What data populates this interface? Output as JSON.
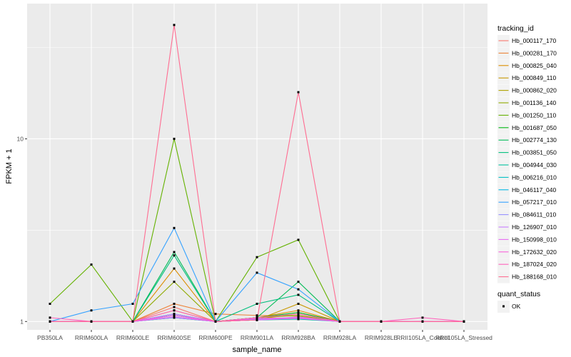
{
  "chart_data": {
    "type": "line",
    "xlabel": "sample_name",
    "ylabel": "FPKM + 1",
    "y_scale": "log10",
    "ylim": [
      0.9,
      55
    ],
    "y_ticks": [
      1,
      10
    ],
    "y_tick_labels": [
      "1",
      "10"
    ],
    "grid": true,
    "legend_position": "right",
    "categories": [
      "PB350LA",
      "RRIM600LA",
      "RRIM600LE",
      "RRIM600SE",
      "RRIM600PE",
      "RRIM901LA",
      "RRIM928BA",
      "RRIM928LA",
      "RRIM928LE",
      "RRII105LA_Control",
      "RRII105LA_Stressed"
    ],
    "legend": {
      "title": "tracking_id",
      "entries": [
        "Hb_000117_170",
        "Hb_000281_170",
        "Hb_000825_040",
        "Hb_000849_110",
        "Hb_000862_020",
        "Hb_001136_140",
        "Hb_001250_110",
        "Hb_001687_050",
        "Hb_002774_130",
        "Hb_003851_050",
        "Hb_004944_030",
        "Hb_006216_010",
        "Hb_046117_040",
        "Hb_057217_010",
        "Hb_084611_010",
        "Hb_126907_010",
        "Hb_150998_010",
        "Hb_172632_020",
        "Hb_187024_020",
        "Hb_188168_010"
      ]
    },
    "shape_legend": {
      "title": "quant_status",
      "entries": [
        "OK"
      ]
    },
    "series": [
      {
        "name": "Hb_000117_170",
        "color": "#F8766D",
        "values": [
          1,
          1,
          1,
          1.2,
          1,
          1.02,
          1.05,
          1,
          1,
          1,
          1
        ]
      },
      {
        "name": "Hb_000281_170",
        "color": "#EC8239",
        "values": [
          1,
          1,
          1,
          1.25,
          1.1,
          1.08,
          1.07,
          1,
          1,
          1,
          1
        ]
      },
      {
        "name": "Hb_000825_040",
        "color": "#DB8E00",
        "values": [
          1,
          1,
          1,
          1.95,
          1,
          1.05,
          1.15,
          1,
          1,
          1,
          1
        ]
      },
      {
        "name": "Hb_000849_110",
        "color": "#C79800",
        "values": [
          1,
          1,
          1,
          1.15,
          1,
          1.02,
          1.25,
          1,
          1,
          1,
          1
        ]
      },
      {
        "name": "Hb_000862_020",
        "color": "#AEA200",
        "values": [
          1,
          1,
          1,
          1.05,
          1,
          1.03,
          1.1,
          1,
          1,
          1,
          1
        ]
      },
      {
        "name": "Hb_001136_140",
        "color": "#8FAA00",
        "values": [
          1,
          1,
          1,
          1.65,
          1,
          1.05,
          1.08,
          1,
          1,
          1,
          1
        ]
      },
      {
        "name": "Hb_001250_110",
        "color": "#64B200",
        "values": [
          1.25,
          2.05,
          1,
          10,
          1,
          2.25,
          2.8,
          1,
          1,
          1,
          1
        ]
      },
      {
        "name": "Hb_001687_050",
        "color": "#00B712",
        "values": [
          1,
          1,
          1,
          1.1,
          1,
          1.05,
          1.12,
          1,
          1,
          1,
          1
        ]
      },
      {
        "name": "Hb_002774_130",
        "color": "#00BC56",
        "values": [
          1,
          1,
          1,
          2.4,
          1,
          1.05,
          1.65,
          1,
          1,
          1,
          1
        ]
      },
      {
        "name": "Hb_003851_050",
        "color": "#00BF7D",
        "values": [
          1,
          1,
          1,
          2.3,
          1,
          1.25,
          1.4,
          1,
          1,
          1,
          1
        ]
      },
      {
        "name": "Hb_004944_030",
        "color": "#00C19F",
        "values": [
          1,
          1,
          1,
          1.08,
          1,
          1.02,
          1.03,
          1,
          1,
          1,
          1
        ]
      },
      {
        "name": "Hb_006216_010",
        "color": "#00BFC4",
        "values": [
          1,
          1,
          1,
          1.05,
          1,
          1.02,
          1.05,
          1,
          1,
          1,
          1
        ]
      },
      {
        "name": "Hb_046117_040",
        "color": "#00B8E5",
        "values": [
          1,
          1,
          1,
          1.1,
          1,
          1.02,
          1.04,
          1,
          1,
          1,
          1
        ]
      },
      {
        "name": "Hb_057217_010",
        "color": "#35A2FF",
        "values": [
          1,
          1.15,
          1.25,
          3.25,
          1,
          1.85,
          1.5,
          1,
          1,
          1,
          1
        ]
      },
      {
        "name": "Hb_084611_010",
        "color": "#9590FF",
        "values": [
          1,
          1,
          1,
          1.05,
          1,
          1.03,
          1.05,
          1,
          1,
          1,
          1
        ]
      },
      {
        "name": "Hb_126907_010",
        "color": "#C77CFF",
        "values": [
          1,
          1,
          1,
          1.1,
          1,
          1.02,
          1.06,
          1,
          1,
          1,
          1
        ]
      },
      {
        "name": "Hb_150998_010",
        "color": "#E76BF3",
        "values": [
          1,
          1,
          1,
          1.06,
          1,
          1.02,
          1.04,
          1,
          1,
          1,
          1
        ]
      },
      {
        "name": "Hb_172632_020",
        "color": "#FA62DB",
        "values": [
          1,
          1,
          1,
          1.08,
          1,
          1.04,
          1.05,
          1,
          1,
          1,
          1
        ]
      },
      {
        "name": "Hb_187024_020",
        "color": "#FF62BC",
        "values": [
          1.05,
          1,
          1,
          1.15,
          1,
          1.05,
          1.1,
          1,
          1,
          1.05,
          1
        ]
      },
      {
        "name": "Hb_188168_010",
        "color": "#FF6C91",
        "values": [
          1,
          1,
          1,
          42,
          1,
          1.02,
          18,
          1,
          1,
          1,
          1
        ]
      }
    ]
  }
}
